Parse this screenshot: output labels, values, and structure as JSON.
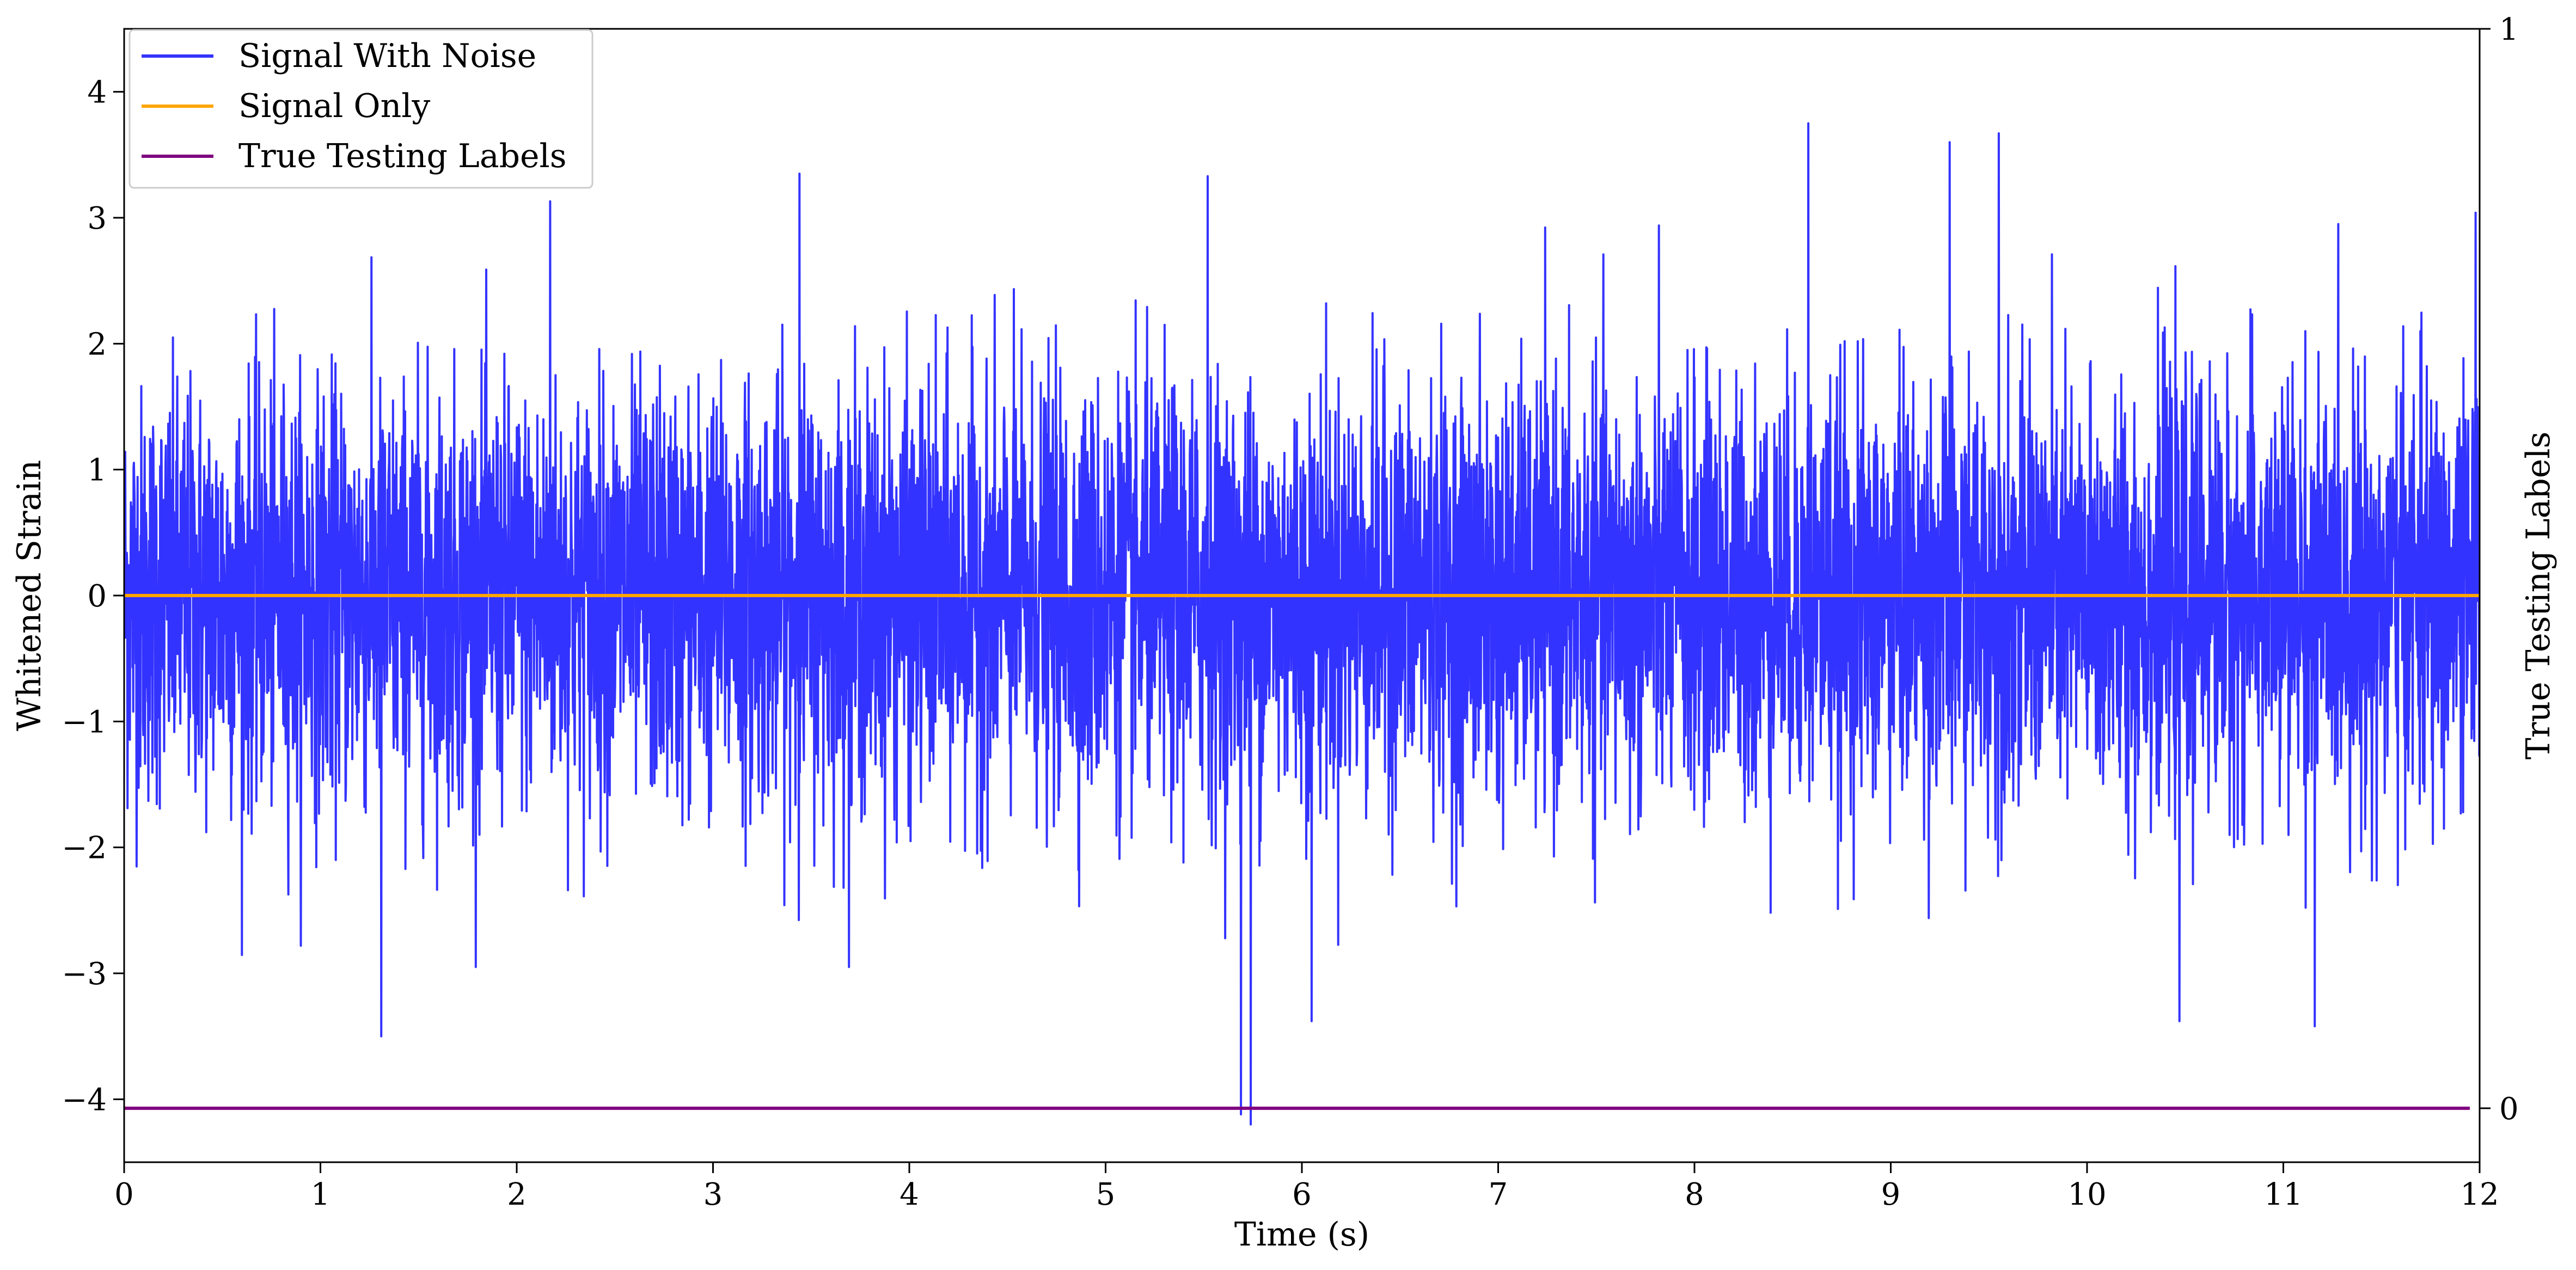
{
  "chart_data": {
    "type": "line",
    "title": "",
    "xlabel": "Time (s)",
    "ylabel": "Whitened Strain",
    "y2label": "True Testing Labels",
    "xlim": [
      0,
      12
    ],
    "ylim": [
      -4.5,
      4.5
    ],
    "y2lim": [
      -0.05,
      1.0
    ],
    "x_ticks": [
      "0",
      "1",
      "2",
      "3",
      "4",
      "5",
      "6",
      "7",
      "8",
      "9",
      "10",
      "11",
      "12"
    ],
    "y_ticks": [
      "4",
      "3",
      "2",
      "1",
      "0",
      "−1",
      "−2",
      "−3",
      "−4"
    ],
    "y2_ticks": [
      "1",
      "0"
    ],
    "legend_position": "upper-left",
    "grid": false,
    "series": [
      {
        "name": "Signal With Noise",
        "color": "#3333ff",
        "axis": "left",
        "description_values": {
          "x_range": [
            0,
            12
          ],
          "typical_abs_range": [
            0,
            2.5
          ],
          "peaks": [
            {
              "x": 3.44,
              "y": 3.35
            },
            {
              "x": 5.52,
              "y": 3.33
            },
            {
              "x": 8.58,
              "y": 3.75
            },
            {
              "x": 9.55,
              "y": 3.67
            },
            {
              "x": 9.3,
              "y": 3.6
            },
            {
              "x": 2.17,
              "y": 3.13
            },
            {
              "x": 11.98,
              "y": 3.04
            },
            {
              "x": 1.31,
              "y": -3.5
            },
            {
              "x": 5.69,
              "y": -4.12
            },
            {
              "x": 5.74,
              "y": -4.2
            },
            {
              "x": 10.47,
              "y": -3.38
            },
            {
              "x": 11.16,
              "y": -3.42
            },
            {
              "x": 6.05,
              "y": -3.38
            }
          ]
        }
      },
      {
        "name": "Signal Only",
        "color": "#ffa500",
        "axis": "left",
        "x": [
          0,
          12
        ],
        "y": [
          0,
          0
        ]
      },
      {
        "name": "True Testing Labels",
        "color": "#800080",
        "axis": "right",
        "x": [
          0,
          11.95
        ],
        "y": [
          0,
          0
        ]
      }
    ]
  }
}
